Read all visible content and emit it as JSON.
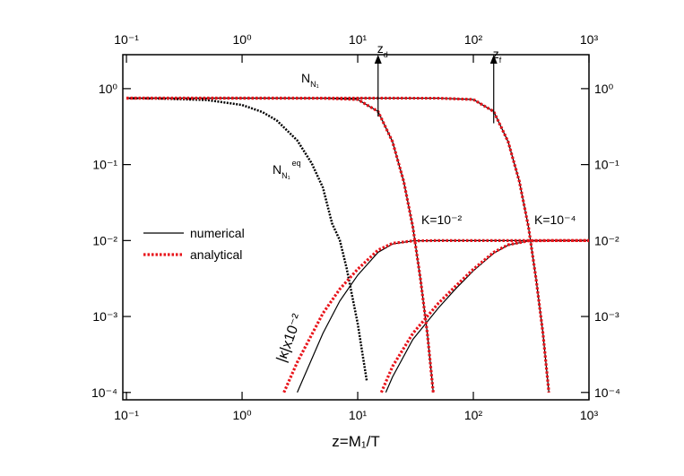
{
  "chart_data": {
    "type": "line",
    "x_label": "z=M₁/T",
    "xscale": "log",
    "yscale": "log",
    "xlim": [
      0.093,
      1000
    ],
    "ylim": [
      8e-05,
      2.8
    ],
    "xticks": [
      {
        "value": 0.1,
        "label": "10⁻¹"
      },
      {
        "value": 1,
        "label": "10⁰"
      },
      {
        "value": 10,
        "label": "10¹"
      },
      {
        "value": 100,
        "label": "10²"
      },
      {
        "value": 1000,
        "label": "10³"
      }
    ],
    "yticks": [
      {
        "value": 1,
        "label": "10⁰"
      },
      {
        "value": 0.1,
        "label": "10⁻¹"
      },
      {
        "value": 0.01,
        "label": "10⁻²"
      },
      {
        "value": 0.001,
        "label": "10⁻³"
      },
      {
        "value": 0.0001,
        "label": "10⁻⁴"
      }
    ],
    "legend": "center left",
    "series": [
      {
        "name": "numerical",
        "color": "#000000",
        "style": "solid",
        "lines": [
          {
            "style": "dotted",
            "x": [
              0.1,
              0.2,
              0.5,
              1,
              1.5,
              2,
              3,
              4,
              5,
              6,
              7,
              8,
              10,
              12
            ],
            "values": [
              0.748,
              0.74,
              0.708,
              0.609,
              0.492,
              0.38,
              0.208,
              0.104,
              0.0498,
              0.0168,
              0.0101,
              0.0044,
              0.000806,
              0.000139
            ]
          },
          {
            "x": [
              0.1,
              1,
              5,
              10,
              15,
              20,
              25,
              30,
              35,
              40,
              45
            ],
            "values": [
              0.75,
              0.75,
              0.748,
              0.72,
              0.5,
              0.2,
              0.06,
              0.015,
              0.003,
              0.0006,
              0.0001
            ]
          },
          {
            "x": [
              0.1,
              10,
              50,
              100,
              150,
              200,
              250,
              300,
              350,
              400,
              450
            ],
            "values": [
              0.75,
              0.75,
              0.748,
              0.72,
              0.5,
              0.2,
              0.06,
              0.015,
              0.003,
              0.0006,
              0.0001
            ]
          },
          {
            "x": [
              3,
              5,
              7,
              10,
              15,
              20,
              30,
              50,
              100,
              1000
            ],
            "values": [
              0.0001,
              0.0006,
              0.0016,
              0.0035,
              0.007,
              0.009,
              0.0099,
              0.01,
              0.01,
              0.01
            ]
          },
          {
            "x": [
              17.5,
              20,
              30,
              50,
              70,
              100,
              150,
              200,
              300,
              500,
              1000
            ],
            "values": [
              0.0001,
              0.00016,
              0.0005,
              0.0013,
              0.0023,
              0.004,
              0.0068,
              0.0087,
              0.0099,
              0.01,
              0.01
            ]
          }
        ]
      },
      {
        "name": "analytical",
        "color": "#e8141b",
        "style": "dotted",
        "lines": [
          {
            "x": [
              0.1,
              1,
              5,
              10,
              15,
              20,
              25,
              30,
              35,
              40,
              45
            ],
            "values": [
              0.75,
              0.75,
              0.748,
              0.72,
              0.5,
              0.2,
              0.06,
              0.015,
              0.003,
              0.0006,
              0.0001
            ]
          },
          {
            "x": [
              0.1,
              10,
              50,
              100,
              150,
              200,
              250,
              300,
              350,
              400,
              450
            ],
            "values": [
              0.75,
              0.75,
              0.748,
              0.72,
              0.5,
              0.2,
              0.06,
              0.015,
              0.003,
              0.0006,
              0.0001
            ]
          },
          {
            "x": [
              2.3,
              3,
              5,
              7,
              10,
              15,
              20,
              30,
              50,
              100,
              1000
            ],
            "values": [
              0.0001,
              0.00025,
              0.0011,
              0.0023,
              0.0042,
              0.0075,
              0.0092,
              0.0099,
              0.01,
              0.01,
              0.01
            ]
          },
          {
            "x": [
              16,
              20,
              30,
              50,
              70,
              100,
              150,
              200,
              300,
              500,
              1000
            ],
            "values": [
              0.0001,
              0.00022,
              0.0006,
              0.0015,
              0.0025,
              0.0042,
              0.007,
              0.0088,
              0.0099,
              0.01,
              0.01
            ]
          }
        ]
      }
    ],
    "annotations": [
      {
        "text": "N",
        "sub": "N₁"
      },
      {
        "text": "N",
        "sub": "N₁",
        "sup": "eq"
      },
      {
        "text": "K=10⁻²"
      },
      {
        "text": "K=10⁻⁴"
      },
      {
        "text": "|κ|x10⁻²"
      }
    ],
    "arrows": [
      {
        "text": "z",
        "sub": "d",
        "x": 15,
        "from": 0.43
      },
      {
        "text": "z",
        "sub": "f",
        "x": 150,
        "from": 0.35
      }
    ]
  }
}
